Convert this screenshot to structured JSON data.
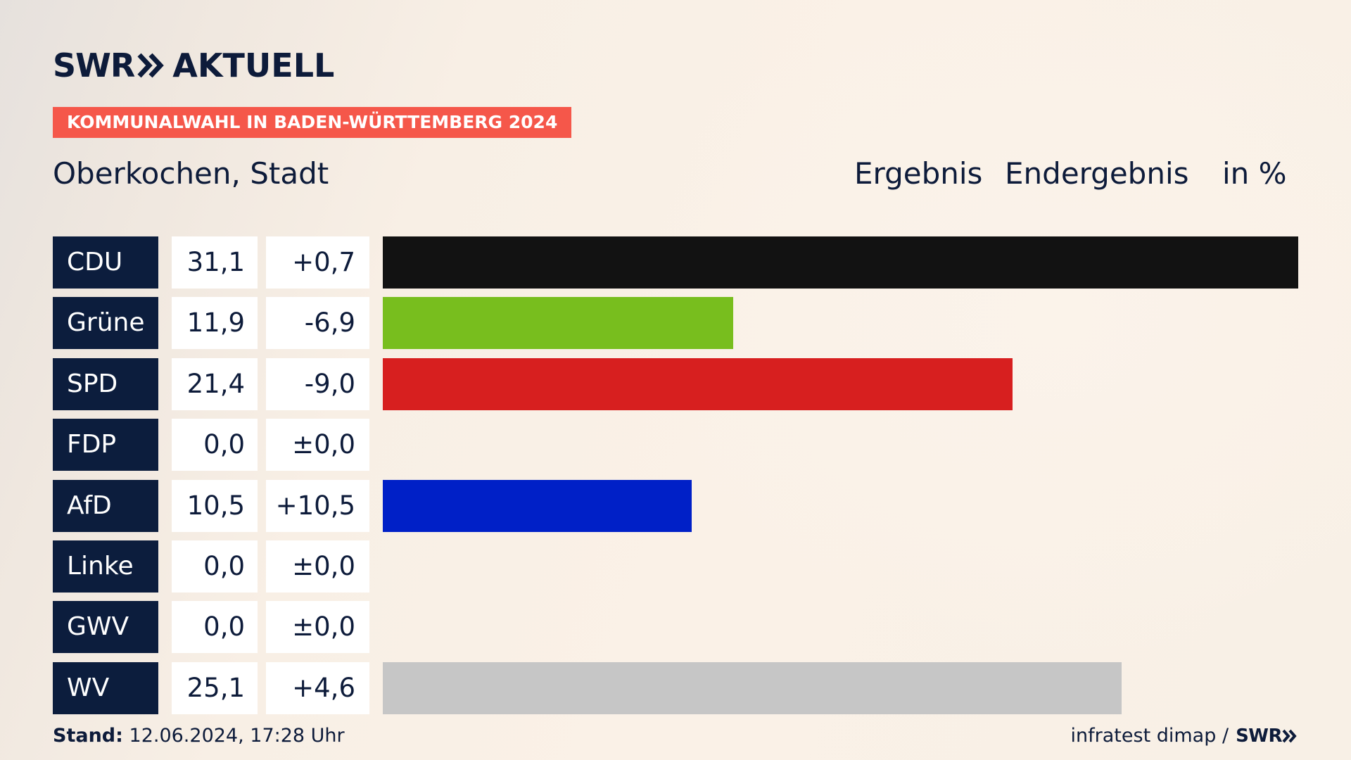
{
  "header": {
    "logo_left": "SWR",
    "logo_right": "AKTUELL",
    "banner": "KOMMUNALWAHL IN BADEN-WÜRTTEMBERG 2024",
    "region": "Oberkochen, Stadt",
    "col_result": "Ergebnis",
    "col_status": "Endergebnis",
    "col_unit": "in %"
  },
  "chart_data": {
    "type": "bar",
    "orientation": "horizontal",
    "categories": [
      "CDU",
      "Grüne",
      "SPD",
      "FDP",
      "AfD",
      "Linke",
      "GWV",
      "WV"
    ],
    "values": [
      31.1,
      11.9,
      21.4,
      0.0,
      10.5,
      0.0,
      0.0,
      25.1
    ],
    "value_labels": [
      "31,1",
      "11,9",
      "21,4",
      "0,0",
      "10,5",
      "0,0",
      "0,0",
      "25,1"
    ],
    "change_labels": [
      "+0,7",
      "-6,9",
      "-9,0",
      "±0,0",
      "+10,5",
      "±0,0",
      "±0,0",
      "+4,6"
    ],
    "colors": [
      "#121212",
      "#78be1e",
      "#d71f1f",
      "#f5d500",
      "#0020c7",
      "#be3075",
      "#999999",
      "#c6c6c6"
    ],
    "xlim": [
      0,
      31.1
    ]
  },
  "footer": {
    "stand_label": "Stand:",
    "stand_value": "12.06.2024, 17:28 Uhr",
    "source": "infratest dimap /",
    "source_logo": "SWR"
  }
}
